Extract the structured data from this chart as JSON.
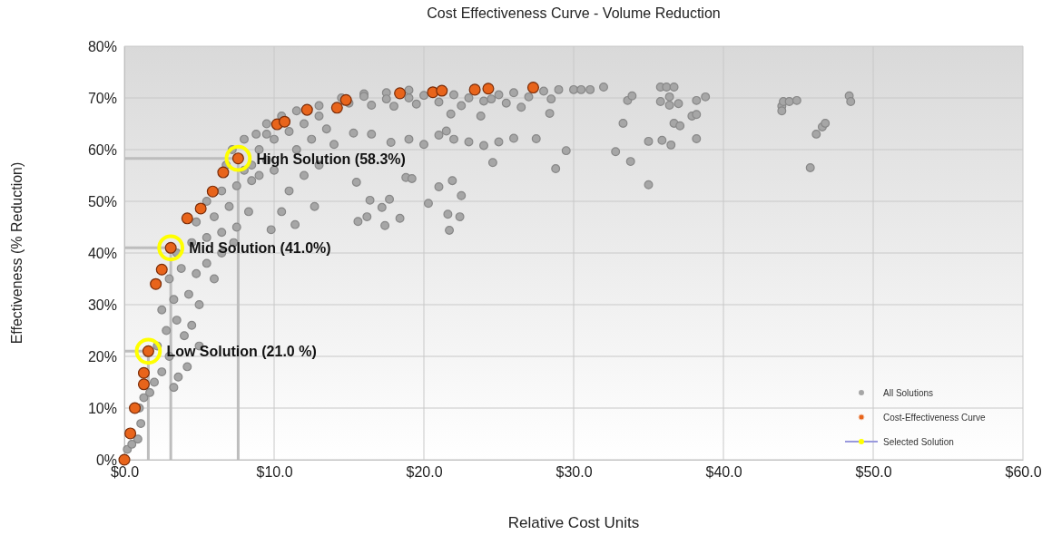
{
  "chart_data": {
    "type": "scatter",
    "title": "Cost Effectiveness Curve - Volume Reduction",
    "xlabel": "Relative Cost Units",
    "ylabel": "Effectiveness (% Reduction)",
    "xlim": [
      0,
      60
    ],
    "xticks": [
      {
        "value": 0,
        "label": "$0.0"
      },
      {
        "value": 10,
        "label": "$10.0"
      },
      {
        "value": 20,
        "label": "$20.0"
      },
      {
        "value": 30,
        "label": "$30.0"
      },
      {
        "value": 40,
        "label": "$40.0"
      },
      {
        "value": 50,
        "label": "$50.0"
      },
      {
        "value": 60,
        "label": "$60.0"
      }
    ],
    "ylim": [
      0,
      80
    ],
    "yticks": [
      {
        "value": 0,
        "label": "0%"
      },
      {
        "value": 10,
        "label": "10%"
      },
      {
        "value": 20,
        "label": "20%"
      },
      {
        "value": 30,
        "label": "30%"
      },
      {
        "value": 40,
        "label": "40%"
      },
      {
        "value": 50,
        "label": "50%"
      },
      {
        "value": 60,
        "label": "60%"
      },
      {
        "value": 70,
        "label": "70%"
      },
      {
        "value": 80,
        "label": "80%"
      }
    ],
    "grid": true,
    "legend": "bottom right",
    "marker": "circle",
    "series": [
      {
        "name": "All Solutions",
        "color": "#a6a6a6",
        "x": [
          0.2,
          0.5,
          0.9,
          1.1,
          1.0,
          1.3,
          1.7,
          2.0,
          2.5,
          3.3,
          3.6,
          4.2,
          3.0,
          2.2,
          2.8,
          3.5,
          4.5,
          2.5,
          3.3,
          4.3,
          5.0,
          3.0,
          3.8,
          4.8,
          5.5,
          3.5,
          4.5,
          5.5,
          6.5,
          7.5,
          4.8,
          6.0,
          7.0,
          8.3,
          5.5,
          6.5,
          7.5,
          8.5,
          6.8,
          8.0,
          9.5,
          7.2,
          8.0,
          8.8,
          9.5,
          10.5,
          11.5,
          13.0,
          14.5,
          16.0,
          17.5,
          19.0,
          5.0,
          4.0,
          6.0,
          6.5,
          7.3,
          10.0,
          11.0,
          11.5,
          12.0,
          12.5,
          13.0,
          13.5,
          14.0,
          9.0,
          9.5,
          8.5,
          9.0,
          10.0,
          11.0,
          12.0,
          13.0,
          12.7,
          10.5,
          9.8,
          11.4,
          15.3,
          16.5,
          17.8,
          19.0,
          20.0,
          21.0,
          21.5,
          22.0,
          23.0,
          24.0,
          25.0,
          26.0,
          27.5,
          29.5,
          28.8,
          24.6,
          15.5,
          16.4,
          17.2,
          17.7,
          18.4,
          17.4,
          16.2,
          15.6,
          20.3,
          21.0,
          21.7,
          21.6,
          22.4,
          21.9,
          22.5,
          18.8,
          19.2,
          15.0,
          16.0,
          16.5,
          17.5,
          18.0,
          19.0,
          19.5,
          20.0,
          21.0,
          22.0,
          22.5,
          23.0,
          24.0,
          25.0,
          25.5,
          26.0,
          26.5,
          27.0,
          28.0,
          28.5,
          29.0,
          30.0,
          30.5,
          21.8,
          23.8,
          28.4,
          24.5,
          31.1,
          32.0,
          33.6,
          33.9,
          33.3,
          32.8,
          33.8,
          35.0,
          35.0,
          35.9,
          36.5,
          35.8,
          36.2,
          36.7,
          35.8,
          36.4,
          36.4,
          37.0,
          36.7,
          37.1,
          37.9,
          38.2,
          38.2,
          38.2,
          38.8,
          43.9,
          44.0,
          44.4,
          44.9,
          43.9,
          46.2,
          46.6,
          46.8,
          45.8,
          48.4,
          48.5
        ],
        "values": [
          2,
          3,
          4,
          7,
          10,
          12,
          13,
          15,
          17,
          14,
          16,
          18,
          20,
          22,
          25,
          27,
          26,
          29,
          31,
          32,
          30,
          35,
          37,
          36,
          38,
          40,
          42,
          43,
          44,
          45,
          46,
          47,
          49,
          48,
          50,
          52,
          53,
          54,
          57,
          56,
          58,
          60,
          62,
          63,
          65,
          66.5,
          67.5,
          68.5,
          70,
          70.8,
          71,
          71.5,
          22,
          24,
          35,
          40,
          42,
          62,
          63.5,
          60,
          65,
          62,
          66.5,
          64,
          61,
          60,
          63,
          57,
          55,
          56,
          52,
          55,
          57,
          49,
          48,
          44.5,
          45.5,
          63.2,
          63,
          61.4,
          62,
          61,
          62.8,
          63.6,
          62,
          61.5,
          60.8,
          61.5,
          62.2,
          62.1,
          59.8,
          56.3,
          57.5,
          53.7,
          50.2,
          48.8,
          50.4,
          46.7,
          45.3,
          47,
          46.1,
          49.6,
          52.8,
          44.4,
          47.5,
          47,
          54,
          51.1,
          54.6,
          54.4,
          69,
          70.3,
          68.6,
          69.8,
          68.4,
          70,
          68.8,
          70.5,
          69.2,
          70.6,
          68.5,
          70,
          69.4,
          70.6,
          69,
          71,
          68.2,
          70.2,
          71.3,
          69.8,
          71.6,
          71.6,
          71.6,
          66.9,
          66.5,
          67,
          69.8,
          71.6,
          72.1,
          69.5,
          70.4,
          65.1,
          59.6,
          57.7,
          53.2,
          61.6,
          61.8,
          60.9,
          72.1,
          72.1,
          72.1,
          69.3,
          70.2,
          68.6,
          68.9,
          65.1,
          64.6,
          66.5,
          66.8,
          62.1,
          69.5,
          70.2,
          68.4,
          69.3,
          69.3,
          69.5,
          67.5,
          63,
          64.4,
          65.1,
          56.5,
          70.4,
          69.3
        ]
      },
      {
        "name": "Cost-Effectiveness Curve",
        "color": "#e8641b",
        "x": [
          0,
          0.4,
          0.7,
          1.3,
          1.3,
          1.6,
          2.1,
          2.5,
          3.1,
          4.2,
          5.1,
          5.9,
          6.6,
          7.6,
          10.2,
          10.7,
          12.2,
          14.2,
          14.8,
          18.4,
          20.6,
          21.2,
          23.4,
          24.3,
          27.3
        ],
        "values": [
          0,
          5.1,
          10,
          14.6,
          16.8,
          21,
          34,
          36.8,
          41,
          46.7,
          48.6,
          51.9,
          55.6,
          58.3,
          64.9,
          65.4,
          67.7,
          68.1,
          69.6,
          70.9,
          71.1,
          71.4,
          71.6,
          71.8,
          72
        ]
      },
      {
        "type": "line",
        "marker": "none",
        "color": "#bdbdbd",
        "x": [
          0,
          1.6,
          1.6
        ],
        "values": [
          21,
          21,
          0
        ]
      },
      {
        "type": "line",
        "marker": "none",
        "color": "#bdbdbd",
        "x": [
          0,
          3.1,
          3.1
        ],
        "values": [
          41,
          41,
          0
        ]
      },
      {
        "type": "line",
        "marker": "none",
        "color": "#bdbdbd",
        "x": [
          0,
          7.6,
          7.6
        ],
        "values": [
          58.3,
          58.3,
          0
        ]
      },
      {
        "name": "Selected Solution",
        "color": "#ffff00",
        "line_style": "solid",
        "x": [
          1.6,
          3.1,
          7.6
        ],
        "values": [
          21,
          41,
          58.3
        ]
      }
    ],
    "annotations": [
      {
        "text": "Low Solution (21.0 %)",
        "x": 1.6,
        "y": 21
      },
      {
        "text": "Mid Solution (41.0%)",
        "x": 3.1,
        "y": 41
      },
      {
        "text": "High Solution (58.3%)",
        "x": 7.6,
        "y": 58.3
      }
    ]
  }
}
